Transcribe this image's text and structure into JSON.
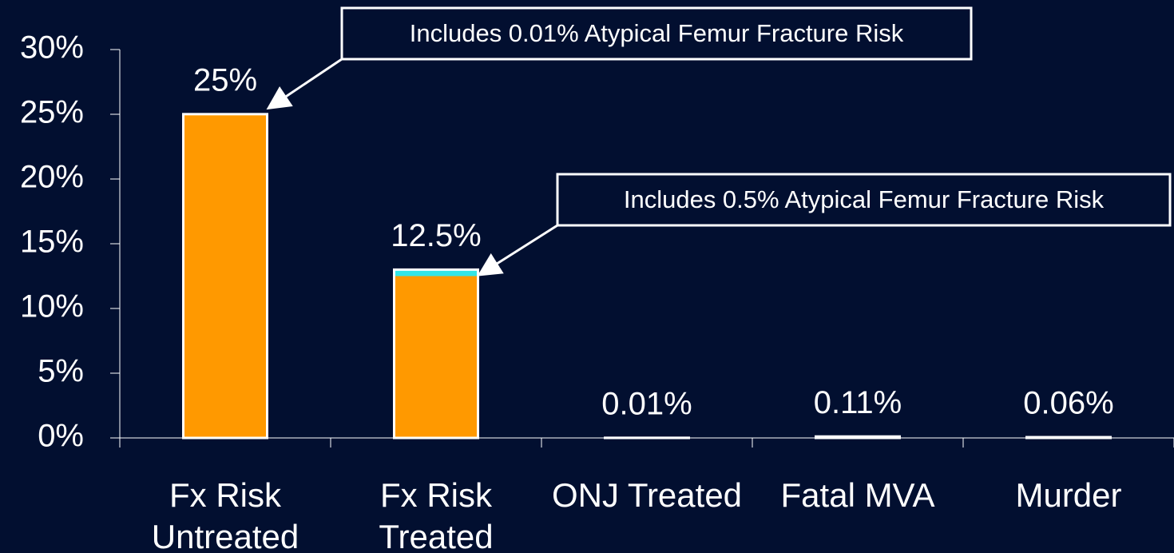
{
  "chart_data": {
    "type": "bar",
    "categories": [
      "Fx Risk Untreated",
      "Fx Risk Treated",
      "ONJ Treated",
      "Fatal MVA",
      "Murder"
    ],
    "series": [
      {
        "color": "#ff9900",
        "values": [
          25,
          12.5,
          0.01,
          0.11,
          0.06
        ],
        "value_labels": [
          "25%",
          "12.5%",
          "0.01%",
          "0.11%",
          "0.06%"
        ]
      },
      {
        "color": "#33e6e6",
        "values": [
          0.01,
          0.5,
          null,
          null,
          null
        ]
      }
    ],
    "stacked": true,
    "ylim": [
      0,
      30
    ],
    "yticks": [
      {
        "value": 0,
        "label": "0%"
      },
      {
        "value": 5,
        "label": "5%"
      },
      {
        "value": 10,
        "label": "10%"
      },
      {
        "value": 15,
        "label": "15%"
      },
      {
        "value": 20,
        "label": "20%"
      },
      {
        "value": 25,
        "label": "25%"
      },
      {
        "value": 30,
        "label": "30%"
      }
    ],
    "annotations": [
      {
        "text": "Includes 0.01% Atypical Femur Fracture Risk",
        "category": 0
      },
      {
        "text": "Includes 0.5% Atypical Femur Fracture Risk",
        "category": 1
      }
    ]
  }
}
